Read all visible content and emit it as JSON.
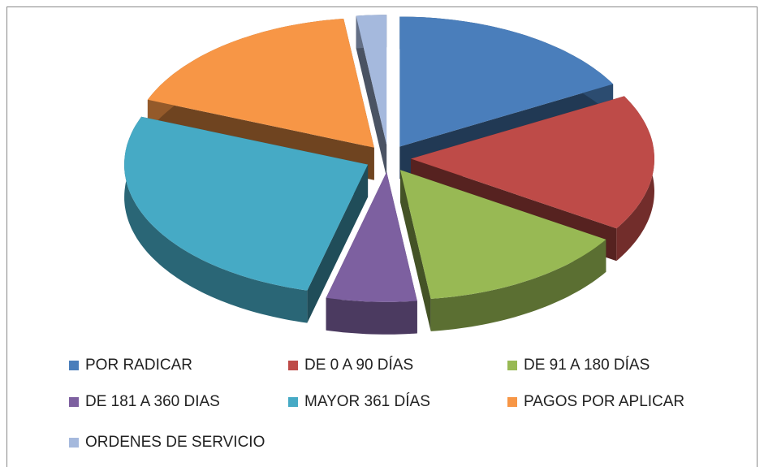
{
  "chart_data": {
    "type": "pie",
    "categories": [
      "POR RADICAR",
      "DE 0 A 90 DÍAS",
      "DE 91 A 180 DÍAS",
      "DE 181 A 360 DIAS",
      "MAYOR 361 DÍAS",
      "PAGOS POR APLICAR",
      "ORDENES DE SERVICIO"
    ],
    "values": [
      17,
      17,
      14,
      6,
      27,
      17,
      2
    ],
    "colors": [
      "#4a7ebb",
      "#be4b48",
      "#98b954",
      "#7d60a0",
      "#46aac5",
      "#f79646",
      "#a5b9dd"
    ],
    "legend": "bottom"
  }
}
